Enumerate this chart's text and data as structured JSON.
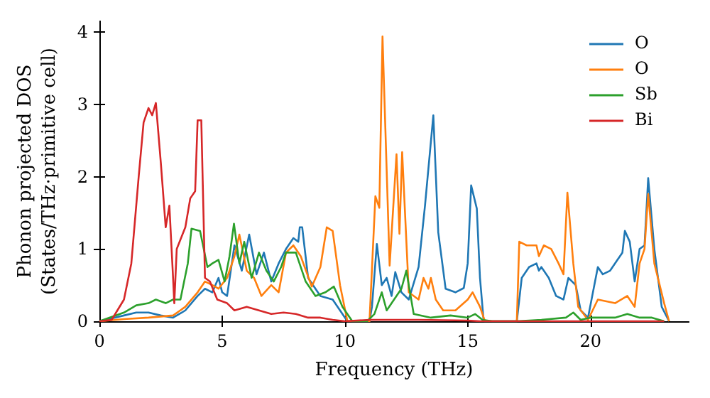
{
  "chart_data": {
    "type": "line",
    "xlabel": "Frequency (THz)",
    "ylabel": "Phonon projected DOS\n(States/THz·primitive cell)",
    "xlim": [
      0,
      24
    ],
    "ylim": [
      0,
      4.15
    ],
    "xticks": [
      0,
      5,
      10,
      15,
      20
    ],
    "yticks": [
      0,
      1,
      2,
      3,
      4
    ],
    "grid": false,
    "legend": "top right",
    "series": [
      {
        "name": "O",
        "color": "#1f77b4",
        "x": [
          0,
          1,
          1.5,
          2,
          2.5,
          3,
          3.5,
          4,
          4.3,
          4.6,
          4.85,
          5,
          5.2,
          5.5,
          5.8,
          6.1,
          6.4,
          6.7,
          7,
          7.3,
          7.6,
          7.9,
          8.1,
          8.16,
          8.26,
          8.5,
          9,
          9.5,
          9.8,
          10.1,
          11,
          11.1,
          11.3,
          11.5,
          11.7,
          11.9,
          12.05,
          12.3,
          12.6,
          13,
          13.26,
          13.6,
          13.8,
          14.1,
          14.5,
          14.84,
          15,
          15.14,
          15.37,
          15.5,
          15.65,
          17,
          17.2,
          17.5,
          17.8,
          17.9,
          18,
          18.3,
          18.6,
          18.9,
          19.1,
          19.4,
          19.6,
          19.9,
          20.1,
          20.3,
          20.5,
          20.8,
          21.1,
          21.3,
          21.4,
          21.6,
          21.8,
          22,
          22.2,
          22.35,
          22.6,
          22.9,
          23.2
        ],
        "values": [
          0,
          0.08,
          0.12,
          0.12,
          0.08,
          0.05,
          0.15,
          0.35,
          0.45,
          0.4,
          0.6,
          0.4,
          0.35,
          1.05,
          0.7,
          1.2,
          0.65,
          0.95,
          0.55,
          0.8,
          1,
          1.15,
          1.1,
          1.3,
          1.3,
          0.6,
          0.35,
          0.3,
          0.15,
          0,
          0,
          0.2,
          1.07,
          0.5,
          0.6,
          0.35,
          0.68,
          0.4,
          0.3,
          0.75,
          1.6,
          2.85,
          1.23,
          0.45,
          0.4,
          0.46,
          0.8,
          1.88,
          1.56,
          0.6,
          0,
          0,
          0.6,
          0.75,
          0.8,
          0.7,
          0.75,
          0.6,
          0.35,
          0.3,
          0.6,
          0.5,
          0.15,
          0.05,
          0.4,
          0.75,
          0.65,
          0.7,
          0.85,
          0.95,
          1.25,
          1.1,
          0.55,
          1,
          1.05,
          1.98,
          1,
          0.2,
          0
        ]
      },
      {
        "name": "O",
        "color": "#ff7f0e",
        "x": [
          0,
          1,
          2,
          3,
          3.5,
          4,
          4.3,
          4.6,
          4.85,
          5.2,
          5.5,
          5.7,
          6,
          6.3,
          6.6,
          7,
          7.3,
          7.6,
          7.9,
          8.2,
          8.65,
          9,
          9.26,
          9.5,
          9.8,
          10.1,
          11,
          11.24,
          11.4,
          11.53,
          11.82,
          12.1,
          12.22,
          12.33,
          12.6,
          13,
          13.2,
          13.4,
          13.5,
          13.7,
          14,
          14.5,
          15,
          15.2,
          15.5,
          15.7,
          17,
          17.1,
          17.4,
          17.8,
          17.9,
          18.1,
          18.4,
          18.7,
          18.9,
          19.06,
          19.3,
          19.5,
          19.9,
          20.3,
          21,
          21.5,
          21.8,
          22,
          22.2,
          22.35,
          22.6,
          23,
          23.2
        ],
        "values": [
          0,
          0.03,
          0.05,
          0.08,
          0.2,
          0.4,
          0.55,
          0.5,
          0.45,
          0.6,
          0.9,
          1.2,
          0.7,
          0.6,
          0.35,
          0.5,
          0.4,
          0.95,
          1.05,
          0.9,
          0.48,
          0.75,
          1.3,
          1.25,
          0.5,
          0,
          0,
          1.73,
          1.57,
          3.94,
          0.77,
          2.31,
          1.21,
          2.34,
          0.4,
          0.3,
          0.6,
          0.45,
          0.6,
          0.3,
          0.15,
          0.15,
          0.3,
          0.4,
          0.2,
          0,
          0,
          1.1,
          1.05,
          1.05,
          0.9,
          1.05,
          1,
          0.8,
          0.65,
          1.78,
          0.8,
          0.2,
          0.02,
          0.3,
          0.25,
          0.35,
          0.2,
          0.8,
          1,
          1.76,
          0.8,
          0.25,
          0
        ]
      },
      {
        "name": "Sb",
        "color": "#2ca02c",
        "x": [
          0,
          1,
          1.5,
          2,
          2.3,
          2.7,
          3,
          3.3,
          3.45,
          3.6,
          3.75,
          4.1,
          4.4,
          4.6,
          4.85,
          5.1,
          5.3,
          5.48,
          5.7,
          5.9,
          6.2,
          6.5,
          6.8,
          7.1,
          7.4,
          7.6,
          8,
          8.4,
          8.8,
          9.2,
          9.55,
          9.9,
          10.3,
          10.9,
          11.2,
          11.5,
          11.7,
          12,
          12.3,
          12.5,
          12.8,
          13.5,
          14.3,
          15,
          15.3,
          15.6,
          16,
          17,
          18,
          19,
          19.3,
          19.6,
          20,
          21,
          21.5,
          22,
          22.5,
          23
        ],
        "values": [
          0,
          0.12,
          0.22,
          0.25,
          0.3,
          0.25,
          0.3,
          0.3,
          0.55,
          0.8,
          1.28,
          1.25,
          0.75,
          0.8,
          0.85,
          0.55,
          0.9,
          1.35,
          0.8,
          1.1,
          0.6,
          0.95,
          0.7,
          0.55,
          0.75,
          0.95,
          0.95,
          0.55,
          0.35,
          0.4,
          0.48,
          0.2,
          0,
          0,
          0.1,
          0.4,
          0.15,
          0.3,
          0.45,
          0.7,
          0.1,
          0.05,
          0.08,
          0.05,
          0.1,
          0.02,
          0,
          0,
          0.02,
          0.05,
          0.12,
          0.02,
          0.05,
          0.05,
          0.1,
          0.05,
          0.05,
          0
        ]
      },
      {
        "name": "Bi",
        "color": "#d62728",
        "x": [
          0,
          0.5,
          1,
          1.3,
          1.6,
          1.8,
          2,
          2.15,
          2.3,
          2.5,
          2.7,
          2.85,
          3,
          3.05,
          3.15,
          3.5,
          3.7,
          3.9,
          4,
          4.15,
          4.3,
          4.5,
          4.8,
          5.2,
          5.5,
          6,
          6.5,
          7,
          7.5,
          8,
          8.5,
          9,
          9.5,
          10,
          11,
          13,
          15,
          15.5,
          23
        ],
        "values": [
          0,
          0.02,
          0.3,
          0.8,
          2,
          2.75,
          2.95,
          2.85,
          3.02,
          2.2,
          1.3,
          1.6,
          0.6,
          0.25,
          1,
          1.3,
          1.7,
          1.8,
          2.78,
          2.78,
          0.6,
          0.55,
          0.3,
          0.25,
          0.15,
          0.2,
          0.15,
          0.1,
          0.12,
          0.1,
          0.05,
          0.05,
          0.02,
          0,
          0.02,
          0.02,
          0.01,
          0,
          0
        ]
      }
    ]
  }
}
